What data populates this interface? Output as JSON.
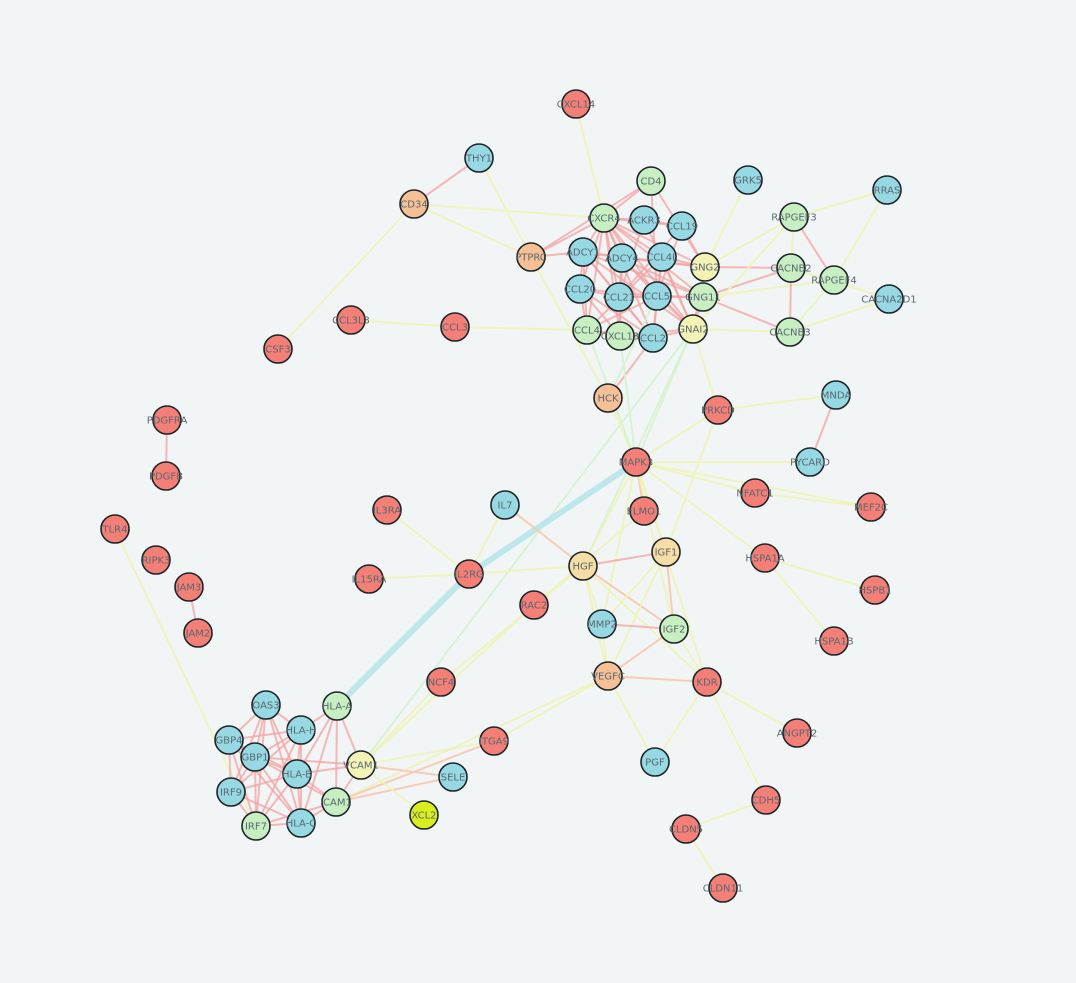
{
  "colors": {
    "background": "#f1f5f6",
    "red": "#f47f77",
    "blue": "#96d9e3",
    "green": "#c8efc2",
    "orange": "#f5c095",
    "yellow": "#f3f3b6",
    "wheat": "#f6dca5",
    "lime": "#dbee1d",
    "edge_pink": "#f3a2a0",
    "edge_yellow": "#eef3b8",
    "edge_green": "#d6f2cf",
    "edge_cyan": "#b7e6ea",
    "edge_peach": "#f6c9ad"
  },
  "nodes": [
    {
      "id": "CXCL14",
      "label": "CXCL14",
      "color": "red"
    },
    {
      "id": "THY1",
      "label": "THY1",
      "color": "blue"
    },
    {
      "id": "CD34",
      "label": "CD34",
      "color": "orange"
    },
    {
      "id": "CSF3",
      "label": "CSF3",
      "color": "red"
    },
    {
      "id": "CCL3L3",
      "label": "CCL3L3",
      "color": "red"
    },
    {
      "id": "CCL3",
      "label": "CCL3",
      "color": "red"
    },
    {
      "id": "PTPRC",
      "label": "PTPRC",
      "color": "orange"
    },
    {
      "id": "CD4",
      "label": "CD4",
      "color": "green"
    },
    {
      "id": "CXCR4",
      "label": "CXCR4",
      "color": "green"
    },
    {
      "id": "ACKR3",
      "label": "ACKR3",
      "color": "blue"
    },
    {
      "id": "CCL19",
      "label": "CCL19",
      "color": "blue"
    },
    {
      "id": "ADCY1",
      "label": "ADCY1",
      "color": "blue"
    },
    {
      "id": "ADCY4",
      "label": "ADCY4",
      "color": "blue"
    },
    {
      "id": "CCL4L",
      "label": "CCL4L",
      "color": "blue"
    },
    {
      "id": "GNG2",
      "label": "GNG2",
      "color": "yellow"
    },
    {
      "id": "CCL20",
      "label": "CCL20",
      "color": "blue"
    },
    {
      "id": "CCL21",
      "label": "CCL21",
      "color": "blue"
    },
    {
      "id": "CCL5",
      "label": "CCL5",
      "color": "blue"
    },
    {
      "id": "GNG11",
      "label": "GNG11",
      "color": "green"
    },
    {
      "id": "CCL4",
      "label": "CCL4",
      "color": "green"
    },
    {
      "id": "CXCL13",
      "label": "CXCL13",
      "color": "green"
    },
    {
      "id": "CCL2",
      "label": "CCL2",
      "color": "blue"
    },
    {
      "id": "GNAI2",
      "label": "GNAI2",
      "color": "yellow"
    },
    {
      "id": "GRK5",
      "label": "GRK5",
      "color": "blue"
    },
    {
      "id": "RAPGEF3",
      "label": "RAPGEF3",
      "color": "green"
    },
    {
      "id": "RRAS",
      "label": "RRAS",
      "color": "blue"
    },
    {
      "id": "CACNB2",
      "label": "CACNB2",
      "color": "green"
    },
    {
      "id": "RAPGEF4",
      "label": "RAPGEF4",
      "color": "green"
    },
    {
      "id": "CACNA2D1",
      "label": "CACNA2D1",
      "color": "blue"
    },
    {
      "id": "CACNB3",
      "label": "CACNB3",
      "color": "green"
    },
    {
      "id": "HCK",
      "label": "HCK",
      "color": "orange"
    },
    {
      "id": "PRKCD",
      "label": "PRKCD",
      "color": "red"
    },
    {
      "id": "MNDA",
      "label": "MNDA",
      "color": "blue"
    },
    {
      "id": "PYCARD",
      "label": "PYCARD",
      "color": "blue"
    },
    {
      "id": "MAPK3",
      "label": "MAPK3",
      "color": "red"
    },
    {
      "id": "NFATC1",
      "label": "NFATC1",
      "color": "red"
    },
    {
      "id": "MEF2C",
      "label": "MEF2C",
      "color": "red"
    },
    {
      "id": "PDGFRA",
      "label": "PDGFRA",
      "color": "red"
    },
    {
      "id": "PDGFB",
      "label": "PDGFB",
      "color": "red"
    },
    {
      "id": "TLR4",
      "label": "TLR4",
      "color": "red"
    },
    {
      "id": "RIPK3",
      "label": "RIPK3",
      "color": "red"
    },
    {
      "id": "JAM3",
      "label": "JAM3",
      "color": "red"
    },
    {
      "id": "JAM2",
      "label": "JAM2",
      "color": "red"
    },
    {
      "id": "IL3RA",
      "label": "IL3RA",
      "color": "red"
    },
    {
      "id": "IL7",
      "label": "IL7",
      "color": "blue"
    },
    {
      "id": "ELMO1",
      "label": "ELMO1",
      "color": "red"
    },
    {
      "id": "IL15RA",
      "label": "IL15RA",
      "color": "red"
    },
    {
      "id": "IL2RG",
      "label": "IL2RG",
      "color": "red"
    },
    {
      "id": "HGF",
      "label": "HGF",
      "color": "wheat"
    },
    {
      "id": "IGF1",
      "label": "IGF1",
      "color": "wheat"
    },
    {
      "id": "HSPA1A",
      "label": "HSPA1A",
      "color": "red"
    },
    {
      "id": "HSPB1",
      "label": "HSPB1",
      "color": "red"
    },
    {
      "id": "RAC2",
      "label": "RAC2",
      "color": "red"
    },
    {
      "id": "MMP2",
      "label": "MMP2",
      "color": "blue"
    },
    {
      "id": "IGF2",
      "label": "IGF2",
      "color": "green"
    },
    {
      "id": "HSPA1B",
      "label": "HSPA1B",
      "color": "red"
    },
    {
      "id": "OAS3",
      "label": "OAS3",
      "color": "blue"
    },
    {
      "id": "HLA-A",
      "label": "HLA-A",
      "color": "green"
    },
    {
      "id": "NCF4",
      "label": "NCF4",
      "color": "red"
    },
    {
      "id": "VEGFC",
      "label": "VEGFC",
      "color": "orange"
    },
    {
      "id": "KDR",
      "label": "KDR",
      "color": "red"
    },
    {
      "id": "GBP4",
      "label": "GBP4",
      "color": "blue"
    },
    {
      "id": "HLA-H",
      "label": "HLA-H",
      "color": "blue"
    },
    {
      "id": "GBP1",
      "label": "GBP1",
      "color": "blue"
    },
    {
      "id": "VCAM1",
      "label": "VCAM1",
      "color": "yellow"
    },
    {
      "id": "ITGA9",
      "label": "ITGA9",
      "color": "red"
    },
    {
      "id": "ANGPT2",
      "label": "ANGPT2",
      "color": "red"
    },
    {
      "id": "HLA-B",
      "label": "HLA-B",
      "color": "blue"
    },
    {
      "id": "SELE",
      "label": "SELE",
      "color": "blue"
    },
    {
      "id": "IRF9",
      "label": "IRF9",
      "color": "blue"
    },
    {
      "id": "ICAM1",
      "label": "ICAM1",
      "color": "green"
    },
    {
      "id": "PGF",
      "label": "PGF",
      "color": "blue"
    },
    {
      "id": "CDH5",
      "label": "CDH5",
      "color": "red"
    },
    {
      "id": "IRF7",
      "label": "IRF7",
      "color": "green"
    },
    {
      "id": "HLA-C",
      "label": "HLA-C",
      "color": "blue"
    },
    {
      "id": "XCL2",
      "label": "XCL2",
      "color": "lime"
    },
    {
      "id": "CLDN5",
      "label": "CLDN5",
      "color": "red"
    },
    {
      "id": "CLDN11",
      "label": "CLDN11",
      "color": "red"
    }
  ],
  "edges": [
    [
      "CXCL14",
      "CXCR4",
      "edge_yellow"
    ],
    [
      "THY1",
      "CD34",
      "edge_pink"
    ],
    [
      "THY1",
      "PTPRC",
      "edge_yellow"
    ],
    [
      "CD34",
      "CSF3",
      "edge_yellow"
    ],
    [
      "CD34",
      "CXCR4",
      "edge_yellow"
    ],
    [
      "CD34",
      "PTPRC",
      "edge_yellow"
    ],
    [
      "CCL3L3",
      "CCL3",
      "edge_yellow"
    ],
    [
      "CCL3",
      "CCL4",
      "edge_yellow"
    ],
    [
      "PTPRC",
      "CD4",
      "edge_pink"
    ],
    [
      "PTPRC",
      "CXCR4",
      "edge_pink"
    ],
    [
      "PTPRC",
      "HCK",
      "edge_yellow"
    ],
    [
      "PTPRC",
      "ADCY1",
      "edge_pink"
    ],
    [
      "CD4",
      "CXCR4",
      "edge_pink"
    ],
    [
      "CD4",
      "CCL5",
      "edge_pink"
    ],
    [
      "CD4",
      "GNG2",
      "edge_pink"
    ],
    [
      "CXCR4",
      "ACKR3",
      "edge_pink"
    ],
    [
      "CXCR4",
      "CCL19",
      "edge_pink"
    ],
    [
      "CXCR4",
      "ADCY1",
      "edge_pink"
    ],
    [
      "CXCR4",
      "ADCY4",
      "edge_pink"
    ],
    [
      "CXCR4",
      "CCL4L",
      "edge_pink"
    ],
    [
      "CXCR4",
      "GNG2",
      "edge_pink"
    ],
    [
      "CXCR4",
      "CCL20",
      "edge_pink"
    ],
    [
      "CXCR4",
      "CCL21",
      "edge_pink"
    ],
    [
      "CXCR4",
      "CCL5",
      "edge_pink"
    ],
    [
      "CXCR4",
      "GNG11",
      "edge_pink"
    ],
    [
      "CXCR4",
      "CCL4",
      "edge_pink"
    ],
    [
      "CXCR4",
      "CXCL13",
      "edge_pink"
    ],
    [
      "CXCR4",
      "CCL2",
      "edge_pink"
    ],
    [
      "CXCR4",
      "GNAI2",
      "edge_pink"
    ],
    [
      "ACKR3",
      "CCL19",
      "edge_pink"
    ],
    [
      "ACKR3",
      "CCL21",
      "edge_pink"
    ],
    [
      "ACKR3",
      "GNAI2",
      "edge_pink"
    ],
    [
      "ADCY1",
      "ADCY4",
      "edge_pink"
    ],
    [
      "ADCY1",
      "GNG2",
      "edge_pink"
    ],
    [
      "ADCY1",
      "GNG11",
      "edge_pink"
    ],
    [
      "ADCY1",
      "GNAI2",
      "edge_pink"
    ],
    [
      "ADCY1",
      "CCL20",
      "edge_pink"
    ],
    [
      "ADCY1",
      "CCL21",
      "edge_pink"
    ],
    [
      "ADCY1",
      "CCL2",
      "edge_pink"
    ],
    [
      "ADCY1",
      "CCL4",
      "edge_pink"
    ],
    [
      "ADCY4",
      "GNG2",
      "edge_pink"
    ],
    [
      "ADCY4",
      "GNG11",
      "edge_pink"
    ],
    [
      "ADCY4",
      "GNAI2",
      "edge_pink"
    ],
    [
      "ADCY4",
      "CCL5",
      "edge_pink"
    ],
    [
      "ADCY4",
      "CCL21",
      "edge_pink"
    ],
    [
      "ADCY4",
      "CXCL13",
      "edge_pink"
    ],
    [
      "CCL4L",
      "CCL5",
      "edge_pink"
    ],
    [
      "CCL4L",
      "CCL4",
      "edge_pink"
    ],
    [
      "CCL4L",
      "GNG2",
      "edge_pink"
    ],
    [
      "CCL4L",
      "GNAI2",
      "edge_pink"
    ],
    [
      "CCL4L",
      "CCL2",
      "edge_pink"
    ],
    [
      "CCL19",
      "CCL21",
      "edge_pink"
    ],
    [
      "CCL19",
      "CCL5",
      "edge_pink"
    ],
    [
      "CCL19",
      "GNG2",
      "edge_pink"
    ],
    [
      "CCL20",
      "CCL21",
      "edge_pink"
    ],
    [
      "CCL20",
      "CCL5",
      "edge_pink"
    ],
    [
      "CCL20",
      "CCL2",
      "edge_pink"
    ],
    [
      "CCL20",
      "CCL4",
      "edge_pink"
    ],
    [
      "CCL20",
      "CXCL13",
      "edge_pink"
    ],
    [
      "CCL21",
      "CCL5",
      "edge_pink"
    ],
    [
      "CCL21",
      "CXCL13",
      "edge_pink"
    ],
    [
      "CCL21",
      "CCL2",
      "edge_pink"
    ],
    [
      "CCL21",
      "GNG11",
      "edge_pink"
    ],
    [
      "CCL5",
      "CCL2",
      "edge_pink"
    ],
    [
      "CCL5",
      "CCL4",
      "edge_pink"
    ],
    [
      "CCL5",
      "GNG11",
      "edge_pink"
    ],
    [
      "CCL5",
      "GNAI2",
      "edge_pink"
    ],
    [
      "CCL4",
      "CXCL13",
      "edge_pink"
    ],
    [
      "CCL4",
      "CCL2",
      "edge_pink"
    ],
    [
      "CXCL13",
      "CCL2",
      "edge_pink"
    ],
    [
      "CXCL13",
      "GNAI2",
      "edge_pink"
    ],
    [
      "CCL2",
      "GNAI2",
      "edge_pink"
    ],
    [
      "GNG2",
      "GNG11",
      "edge_pink"
    ],
    [
      "GNG2",
      "GNAI2",
      "edge_pink"
    ],
    [
      "GNG2",
      "CACNB2",
      "edge_pink"
    ],
    [
      "GNG2",
      "GRK5",
      "edge_yellow"
    ],
    [
      "GNG2",
      "RAPGEF3",
      "edge_yellow"
    ],
    [
      "GNG11",
      "GNAI2",
      "edge_pink"
    ],
    [
      "GNG11",
      "CACNB3",
      "edge_pink"
    ],
    [
      "GNG11",
      "RAPGEF4",
      "edge_yellow"
    ],
    [
      "GNG11",
      "CACNB2",
      "edge_pink"
    ],
    [
      "GNAI2",
      "CACNB3",
      "edge_yellow"
    ],
    [
      "GNAI2",
      "RAPGEF3",
      "edge_yellow"
    ],
    [
      "GNAI2",
      "PRKCD",
      "edge_yellow"
    ],
    [
      "GNAI2",
      "MAPK3",
      "edge_green"
    ],
    [
      "GNAI2",
      "HGF",
      "edge_green"
    ],
    [
      "GNAI2",
      "VCAM1",
      "edge_green"
    ],
    [
      "RAPGEF3",
      "RRAS",
      "edge_yellow"
    ],
    [
      "RAPGEF3",
      "RAPGEF4",
      "edge_pink"
    ],
    [
      "RAPGEF3",
      "CACNB2",
      "edge_yellow"
    ],
    [
      "RRAS",
      "RAPGEF4",
      "edge_yellow"
    ],
    [
      "CACNB2",
      "CACNB3",
      "edge_pink"
    ],
    [
      "CACNB2",
      "CACNA2D1",
      "edge_yellow"
    ],
    [
      "CACNB3",
      "CACNA2D1",
      "edge_yellow"
    ],
    [
      "CACNB3",
      "RAPGEF4",
      "edge_yellow"
    ],
    [
      "HCK",
      "MAPK3",
      "edge_yellow"
    ],
    [
      "HCK",
      "CCL2",
      "edge_pink"
    ],
    [
      "HCK",
      "CCL5",
      "edge_green"
    ],
    [
      "CCL4",
      "MAPK3",
      "edge_green"
    ],
    [
      "CXCL13",
      "MAPK3",
      "edge_green"
    ],
    [
      "PRKCD",
      "MAPK3",
      "edge_yellow"
    ],
    [
      "PRKCD",
      "MNDA",
      "edge_yellow"
    ],
    [
      "PRKCD",
      "IGF1",
      "edge_yellow"
    ],
    [
      "MNDA",
      "PYCARD",
      "edge_pink"
    ],
    [
      "MAPK3",
      "PYCARD",
      "edge_yellow"
    ],
    [
      "MAPK3",
      "NFATC1",
      "edge_yellow"
    ],
    [
      "MAPK3",
      "MEF2C",
      "edge_yellow"
    ],
    [
      "MAPK3",
      "HSPA1A",
      "edge_yellow"
    ],
    [
      "MAPK3",
      "ELMO1",
      "edge_peach"
    ],
    [
      "MAPK3",
      "HGF",
      "edge_yellow"
    ],
    [
      "MAPK3",
      "IGF1",
      "edge_yellow"
    ],
    [
      "MAPK3",
      "IGF2",
      "edge_yellow"
    ],
    [
      "MAPK3",
      "KDR",
      "edge_yellow"
    ],
    [
      "MAPK3",
      "MMP2",
      "edge_yellow"
    ],
    [
      "MAPK3",
      "IL2RG",
      "edge_cyan"
    ],
    [
      "IL2RG",
      "HLA-A",
      "edge_cyan"
    ],
    [
      "NFATC1",
      "MEF2C",
      "edge_yellow"
    ],
    [
      "PDGFRA",
      "PDGFB",
      "edge_pink"
    ],
    [
      "TLR4",
      "IRF7",
      "edge_yellow"
    ],
    [
      "JAM3",
      "JAM2",
      "edge_pink"
    ],
    [
      "IL3RA",
      "IL2RG",
      "edge_yellow"
    ],
    [
      "IL7",
      "IL2RG",
      "edge_yellow"
    ],
    [
      "IL7",
      "HGF",
      "edge_peach"
    ],
    [
      "IL15RA",
      "IL2RG",
      "edge_yellow"
    ],
    [
      "IL2RG",
      "HGF",
      "edge_yellow"
    ],
    [
      "ELMO1",
      "RAC2",
      "edge_yellow"
    ],
    [
      "HGF",
      "IGF1",
      "edge_pink"
    ],
    [
      "HGF",
      "MMP2",
      "edge_yellow"
    ],
    [
      "HGF",
      "IGF2",
      "edge_peach"
    ],
    [
      "HGF",
      "VEGFC",
      "edge_yellow"
    ],
    [
      "HGF",
      "KDR",
      "edge_yellow"
    ],
    [
      "HGF",
      "NCF4",
      "edge_yellow"
    ],
    [
      "IGF1",
      "IGF2",
      "edge_peach"
    ],
    [
      "IGF1",
      "VEGFC",
      "edge_yellow"
    ],
    [
      "IGF1",
      "MMP2",
      "edge_yellow"
    ],
    [
      "HSPA1A",
      "HSPB1",
      "edge_yellow"
    ],
    [
      "HSPA1A",
      "HSPA1B",
      "edge_yellow"
    ],
    [
      "MMP2",
      "IGF2",
      "edge_pink"
    ],
    [
      "MMP2",
      "VEGFC",
      "edge_yellow"
    ],
    [
      "IGF2",
      "VEGFC",
      "edge_peach"
    ],
    [
      "VEGFC",
      "KDR",
      "edge_peach"
    ],
    [
      "VEGFC",
      "PGF",
      "edge_yellow"
    ],
    [
      "VEGFC",
      "ITGA9",
      "edge_yellow"
    ],
    [
      "VEGFC",
      "ICAM1",
      "edge_yellow"
    ],
    [
      "KDR",
      "ANGPT2",
      "edge_yellow"
    ],
    [
      "KDR",
      "CDH5",
      "edge_yellow"
    ],
    [
      "KDR",
      "IGF2",
      "edge_yellow"
    ],
    [
      "KDR",
      "PGF",
      "edge_yellow"
    ],
    [
      "CDH5",
      "CLDN5",
      "edge_yellow"
    ],
    [
      "CLDN5",
      "CLDN11",
      "edge_yellow"
    ],
    [
      "ITGA9",
      "VCAM1",
      "edge_yellow"
    ],
    [
      "ICAM1",
      "ITGA9",
      "edge_peach"
    ],
    [
      "SELE",
      "VCAM1",
      "edge_peach"
    ],
    [
      "SELE",
      "ICAM1",
      "edge_peach"
    ],
    [
      "XCL2",
      "VCAM1",
      "edge_yellow"
    ],
    [
      "RAC2",
      "VCAM1",
      "edge_yellow"
    ],
    [
      "NCF4",
      "VCAM1",
      "edge_yellow"
    ],
    [
      "OAS3",
      "HLA-H",
      "edge_pink"
    ],
    [
      "OAS3",
      "GBP4",
      "edge_pink"
    ],
    [
      "OAS3",
      "GBP1",
      "edge_pink"
    ],
    [
      "OAS3",
      "HLA-B",
      "edge_pink"
    ],
    [
      "OAS3",
      "IRF9",
      "edge_pink"
    ],
    [
      "OAS3",
      "IRF7",
      "edge_pink"
    ],
    [
      "OAS3",
      "HLA-C",
      "edge_pink"
    ],
    [
      "GBP4",
      "HLA-H",
      "edge_pink"
    ],
    [
      "GBP4",
      "GBP1",
      "edge_pink"
    ],
    [
      "GBP4",
      "HLA-B",
      "edge_pink"
    ],
    [
      "GBP4",
      "IRF9",
      "edge_pink"
    ],
    [
      "GBP4",
      "IRF7",
      "edge_pink"
    ],
    [
      "GBP4",
      "HLA-C",
      "edge_pink"
    ],
    [
      "GBP1",
      "HLA-H",
      "edge_pink"
    ],
    [
      "GBP1",
      "HLA-B",
      "edge_pink"
    ],
    [
      "GBP1",
      "IRF9",
      "edge_pink"
    ],
    [
      "GBP1",
      "IRF7",
      "edge_pink"
    ],
    [
      "GBP1",
      "HLA-C",
      "edge_pink"
    ],
    [
      "GBP1",
      "ICAM1",
      "edge_pink"
    ],
    [
      "GBP1",
      "VCAM1",
      "edge_pink"
    ],
    [
      "HLA-H",
      "HLA-B",
      "edge_pink"
    ],
    [
      "HLA-H",
      "HLA-C",
      "edge_pink"
    ],
    [
      "HLA-H",
      "IRF9",
      "edge_pink"
    ],
    [
      "HLA-H",
      "IRF7",
      "edge_pink"
    ],
    [
      "HLA-H",
      "HLA-A",
      "edge_pink"
    ],
    [
      "HLA-B",
      "HLA-C",
      "edge_pink"
    ],
    [
      "HLA-B",
      "IRF9",
      "edge_pink"
    ],
    [
      "HLA-B",
      "IRF7",
      "edge_pink"
    ],
    [
      "HLA-B",
      "ICAM1",
      "edge_pink"
    ],
    [
      "HLA-B",
      "VCAM1",
      "edge_pink"
    ],
    [
      "HLA-B",
      "HLA-A",
      "edge_pink"
    ],
    [
      "IRF9",
      "IRF7",
      "edge_pink"
    ],
    [
      "IRF9",
      "HLA-C",
      "edge_pink"
    ],
    [
      "IRF7",
      "HLA-C",
      "edge_pink"
    ],
    [
      "IRF7",
      "ICAM1",
      "edge_pink"
    ],
    [
      "HLA-C",
      "ICAM1",
      "edge_pink"
    ],
    [
      "HLA-C",
      "HLA-A",
      "edge_pink"
    ],
    [
      "HLA-A",
      "ICAM1",
      "edge_pink"
    ],
    [
      "HLA-A",
      "VCAM1",
      "edge_pink"
    ],
    [
      "ICAM1",
      "VCAM1",
      "edge_pink"
    ]
  ]
}
